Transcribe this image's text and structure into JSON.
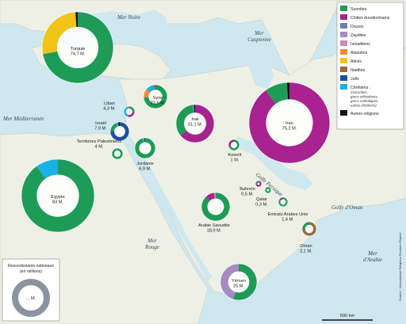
{
  "seas": {
    "noire": "Mer Noire",
    "caspienne_line1": "Mer",
    "caspienne_line2": "Caspienne",
    "mediterranee": "Mer Méditerranée",
    "rouge_line1": "Mer",
    "rouge_line2": "Rouge",
    "golfe_persique": "Golfe Persique",
    "golfe_oman": "Golfe d'Oman",
    "arabie_line1": "Mer",
    "arabie_line2": "d'Arabie"
  },
  "legend": {
    "items": [
      {
        "label": "Sunnites",
        "color": "#1e9b57"
      },
      {
        "label": "Chiites duodécimains",
        "color": "#a8238f"
      },
      {
        "label": "Druzes",
        "color": "#6b7fbe"
      },
      {
        "label": "Zaydites",
        "color": "#a58bc2"
      },
      {
        "label": "Ismaéliens",
        "color": "#c98ab6"
      },
      {
        "label": "Alaouites",
        "color": "#f08c3a"
      },
      {
        "label": "Alévis",
        "color": "#f0c419"
      },
      {
        "label": "Ibadites",
        "color": "#9a6a3a"
      },
      {
        "label": "Juifs",
        "color": "#1f4fa0"
      },
      {
        "label": "Chrétiens :",
        "color": "#19b1e6"
      },
      {
        "label": "Autres religions",
        "color": "#111111"
      }
    ],
    "christian_note": [
      "(maronites,",
      "grecs orthodoxes,",
      "grecs catholiques,",
      "autres chrétiens)"
    ]
  },
  "size_legend": {
    "title_line1": "Ressortissants nationaux",
    "title_line2": "(en millions)",
    "sample": "... M."
  },
  "scale_label": "500 km",
  "source": "Source : International Religious Freedom Report",
  "countries": [
    {
      "name": "Turquie",
      "pop": "74,7 M.",
      "slices": [
        [
          "#1e9b57",
          0.72
        ],
        [
          "#f0c419",
          0.27
        ],
        [
          "#111111",
          0.01
        ]
      ]
    },
    {
      "name": "Syrie",
      "pop": "22,5 M.",
      "slices": [
        [
          "#1e9b57",
          0.74
        ],
        [
          "#f08c3a",
          0.12
        ],
        [
          "#19b1e6",
          0.1
        ],
        [
          "#6b7fbe",
          0.03
        ],
        [
          "#a8238f",
          0.01
        ]
      ]
    },
    {
      "name": "Liban",
      "pop": "4,3 M.",
      "slices": [
        [
          "#1e9b57",
          0.27
        ],
        [
          "#a8238f",
          0.27
        ],
        [
          "#19b1e6",
          0.4
        ],
        [
          "#6b7fbe",
          0.05
        ],
        [
          "#f08c3a",
          0.01
        ]
      ]
    },
    {
      "name": "Israël",
      "pop": "7,9 M.",
      "slices": [
        [
          "#1f4fa0",
          0.76
        ],
        [
          "#1e9b57",
          0.17
        ],
        [
          "#19b1e6",
          0.02
        ],
        [
          "#6b7fbe",
          0.02
        ],
        [
          "#111111",
          0.03
        ]
      ]
    },
    {
      "name": "Territoires Palestiniens",
      "pop": "4 M.",
      "slices": [
        [
          "#1e9b57",
          0.97
        ],
        [
          "#19b1e6",
          0.03
        ]
      ]
    },
    {
      "name": "Jordanie",
      "pop": "6,9 M.",
      "slices": [
        [
          "#1e9b57",
          0.95
        ],
        [
          "#19b1e6",
          0.04
        ],
        [
          "#111111",
          0.01
        ]
      ]
    },
    {
      "name": "Irak",
      "pop": "31,1 M.",
      "slices": [
        [
          "#a8238f",
          0.64
        ],
        [
          "#1e9b57",
          0.34
        ],
        [
          "#19b1e6",
          0.01
        ],
        [
          "#111111",
          0.01
        ]
      ]
    },
    {
      "name": "Iran",
      "pop": "75,2 M.",
      "slices": [
        [
          "#a8238f",
          0.9
        ],
        [
          "#1e9b57",
          0.09
        ],
        [
          "#111111",
          0.01
        ]
      ]
    },
    {
      "name": "Koweït",
      "pop": "1 M.",
      "slices": [
        [
          "#1e9b57",
          0.7
        ],
        [
          "#a8238f",
          0.3
        ]
      ]
    },
    {
      "name": "Bahreïn",
      "pop": "0,5 M.",
      "slices": [
        [
          "#a8238f",
          0.7
        ],
        [
          "#1e9b57",
          0.3
        ]
      ]
    },
    {
      "name": "Qatar",
      "pop": "0,3 M.",
      "slices": [
        [
          "#1e9b57",
          0.9
        ],
        [
          "#a8238f",
          0.1
        ]
      ]
    },
    {
      "name": "Emirats Arabes Unis",
      "pop": "1,4 M.",
      "slices": [
        [
          "#1e9b57",
          0.85
        ],
        [
          "#a8238f",
          0.15
        ]
      ]
    },
    {
      "name": "Oman",
      "pop": "2,1 M.",
      "slices": [
        [
          "#9a6a3a",
          0.75
        ],
        [
          "#1e9b57",
          0.25
        ]
      ]
    },
    {
      "name": "Arabie Saoudite",
      "pop": "18,9 M.",
      "slices": [
        [
          "#1e9b57",
          0.88
        ],
        [
          "#a8238f",
          0.1
        ],
        [
          "#c98ab6",
          0.02
        ]
      ]
    },
    {
      "name": "Yémen",
      "pop": "25 M.",
      "slices": [
        [
          "#1e9b57",
          0.55
        ],
        [
          "#a58bc2",
          0.45
        ]
      ]
    },
    {
      "name": "Egypte",
      "pop": "83 M.",
      "slices": [
        [
          "#1e9b57",
          0.9
        ],
        [
          "#19b1e6",
          0.1
        ]
      ]
    }
  ]
}
